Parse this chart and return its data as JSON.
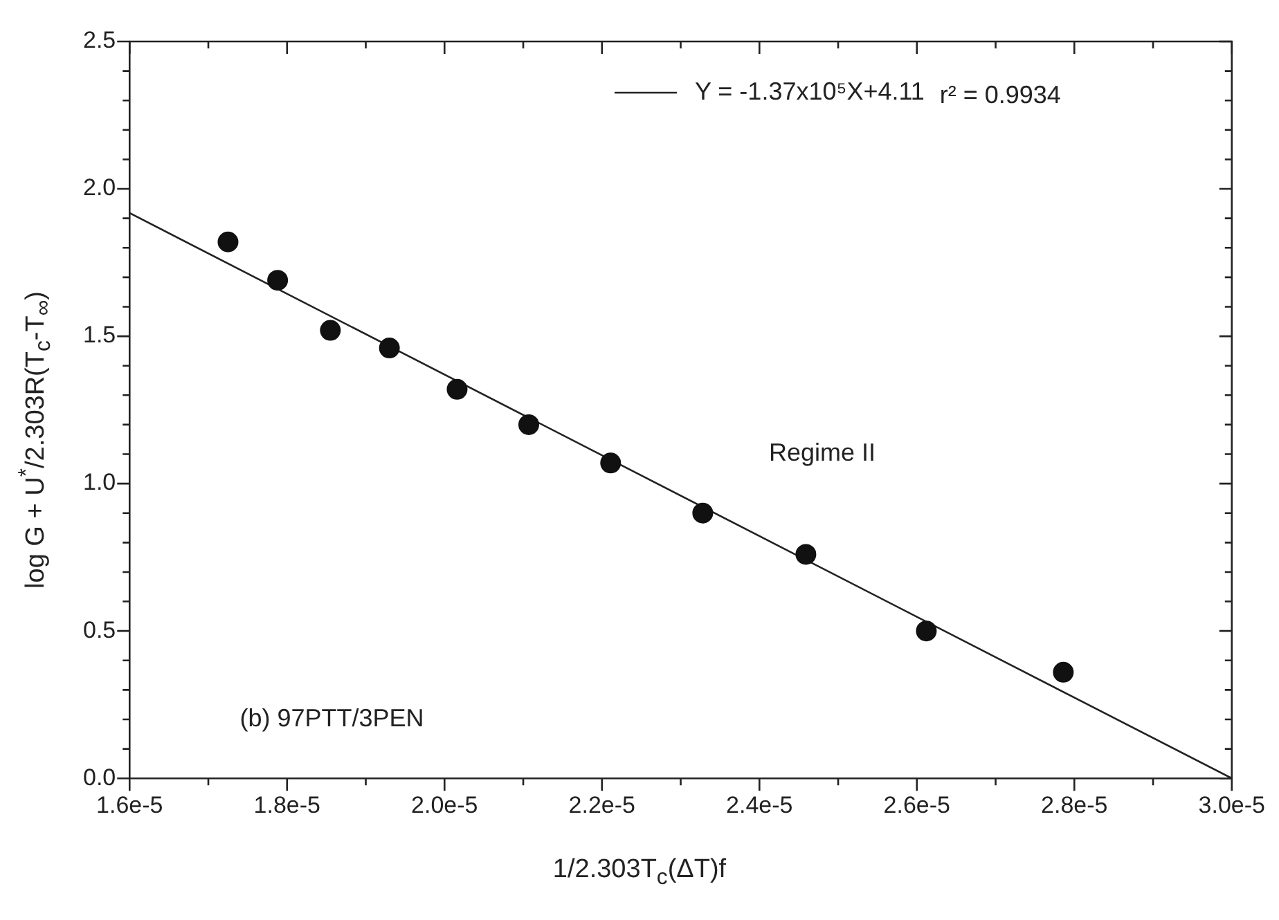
{
  "chart_data": {
    "type": "scatter",
    "xlabel": "1/2.303T$_{c}$(ΔT)f",
    "ylabel": "log G + U$^{*}$/2.303R(T$_{c}$-T$_{∞}$)",
    "xlim": [
      1.6e-05,
      3e-05
    ],
    "xticks": [
      {
        "value": 1.6e-05,
        "label": "1.6e-5"
      },
      {
        "value": 1.7e-05,
        "label": null
      },
      {
        "value": 1.8e-05,
        "label": "1.8e-5"
      },
      {
        "value": 1.9e-05,
        "label": null
      },
      {
        "value": 2e-05,
        "label": "2.0e-5"
      },
      {
        "value": 2.1e-05,
        "label": null
      },
      {
        "value": 2.2e-05,
        "label": "2.2e-5"
      },
      {
        "value": 2.3e-05,
        "label": null
      },
      {
        "value": 2.4e-05,
        "label": "2.4e-5"
      },
      {
        "value": 2.5e-05,
        "label": null
      },
      {
        "value": 2.6e-05,
        "label": "2.6e-5"
      },
      {
        "value": 2.7e-05,
        "label": null
      },
      {
        "value": 2.8e-05,
        "label": "2.8e-5"
      },
      {
        "value": 2.9e-05,
        "label": null
      },
      {
        "value": 3e-05,
        "label": "3.0e-5"
      }
    ],
    "ylim": [
      0,
      2.5
    ],
    "yticks": [
      {
        "value": 0,
        "label": "0.0"
      },
      {
        "value": 0.1,
        "label": null
      },
      {
        "value": 0.2,
        "label": null
      },
      {
        "value": 0.3,
        "label": null
      },
      {
        "value": 0.4,
        "label": null
      },
      {
        "value": 0.5,
        "label": "0.5"
      },
      {
        "value": 0.6,
        "label": null
      },
      {
        "value": 0.7,
        "label": null
      },
      {
        "value": 0.8,
        "label": null
      },
      {
        "value": 0.9,
        "label": null
      },
      {
        "value": 1.0,
        "label": "1.0"
      },
      {
        "value": 1.1,
        "label": null
      },
      {
        "value": 1.2,
        "label": null
      },
      {
        "value": 1.3,
        "label": null
      },
      {
        "value": 1.4,
        "label": null
      },
      {
        "value": 1.5,
        "label": "1.5"
      },
      {
        "value": 1.6,
        "label": null
      },
      {
        "value": 1.7,
        "label": null
      },
      {
        "value": 1.8,
        "label": null
      },
      {
        "value": 1.9,
        "label": null
      },
      {
        "value": 2.0,
        "label": "2.0"
      },
      {
        "value": 2.1,
        "label": null
      },
      {
        "value": 2.2,
        "label": null
      },
      {
        "value": 2.3,
        "label": null
      },
      {
        "value": 2.4,
        "label": null
      },
      {
        "value": 2.5,
        "label": "2.5"
      }
    ],
    "grid": false,
    "legend": "top right",
    "series": [
      {
        "color": "#111111",
        "marker": "circle",
        "x": [
          1.725e-05,
          1.788e-05,
          1.855e-05,
          1.93e-05,
          2.016e-05,
          2.107e-05,
          2.211e-05,
          2.328e-05,
          2.459e-05,
          2.612e-05,
          2.786e-05
        ],
        "values": [
          1.82,
          1.69,
          1.52,
          1.46,
          1.32,
          1.2,
          1.07,
          0.9,
          0.76,
          0.5,
          0.36
        ]
      },
      {
        "type": "line",
        "name": "Y = -1.37x10⁵X+4.11",
        "color": "#222222",
        "marker": "none",
        "line_style": "solid",
        "x": [
          1.6e-05,
          3e-05
        ],
        "values": [
          1.918,
          0.0
        ]
      }
    ],
    "annotations": [
      "r² = 0.9934",
      "Regime II",
      "(b) 97PTT/3PEN"
    ]
  }
}
